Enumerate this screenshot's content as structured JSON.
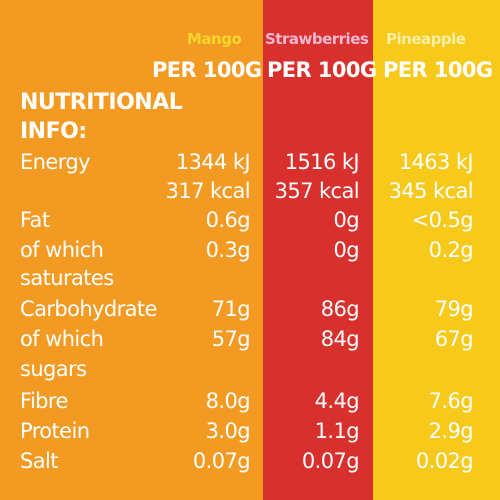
{
  "colors": {
    "mango": "#F39A23",
    "strawberries": "#D8302C",
    "pineapple": "#F6C91A",
    "text": "#FFFFFF"
  },
  "columns": [
    {
      "key": "mango",
      "name": "Mango",
      "per": "PER 100G"
    },
    {
      "key": "strawberries",
      "name": "Strawberries",
      "per": "PER 100G"
    },
    {
      "key": "pineapple",
      "name": "Pineapple",
      "per": "PER 100G"
    }
  ],
  "heading": "NUTRITIONAL INFO:",
  "rows": [
    {
      "label": "Energy",
      "mango": "1344 kJ",
      "strawberries": "1516 kJ",
      "pineapple": "1463 kJ"
    },
    {
      "label": "",
      "mango": "317 kcal",
      "strawberries": "357 kcal",
      "pineapple": "345 kcal"
    },
    {
      "label": "Fat",
      "mango": "0.6g",
      "strawberries": "0g",
      "pineapple": "<0.5g"
    },
    {
      "label": "of which",
      "mango": "0.3g",
      "strawberries": "0g",
      "pineapple": "0.2g"
    },
    {
      "label": "saturates",
      "mango": "",
      "strawberries": "",
      "pineapple": ""
    },
    {
      "label": "Carbohydrate",
      "mango": "71g",
      "strawberries": "86g",
      "pineapple": "79g"
    },
    {
      "label": "of which",
      "mango": "57g",
      "strawberries": "84g",
      "pineapple": "67g"
    },
    {
      "label": "sugars",
      "mango": "",
      "strawberries": "",
      "pineapple": ""
    },
    {
      "label": "Fibre",
      "mango": "8.0g",
      "strawberries": "4.4g",
      "pineapple": "7.6g"
    },
    {
      "label": "Protein",
      "mango": "3.0g",
      "strawberries": "1.1g",
      "pineapple": "2.9g"
    },
    {
      "label": "Salt",
      "mango": "0.07g",
      "strawberries": "0.07g",
      "pineapple": "0.02g"
    }
  ]
}
